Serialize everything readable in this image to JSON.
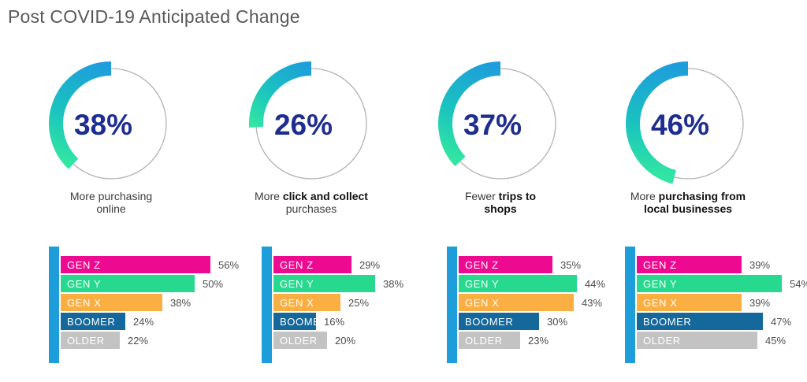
{
  "title": "Post COVID-19 Anticipated Change",
  "colors": {
    "title_text": "#58595B",
    "axis_blue": "#1E9DDB",
    "arc_gradient_start": "#1E9DDB",
    "arc_gradient_mid": "#19C2C0",
    "arc_gradient_end": "#31E5A2",
    "donut_track": "#B3B3B3",
    "donut_value_text": "#1E2D90",
    "bar_palette": [
      "#EE0A90",
      "#27D98F",
      "#FBAE42",
      "#15689B",
      "#C3C3C3"
    ],
    "bar_label_text": "#FFFFFF",
    "bar_pct_text": "#4D4D4D",
    "caption_text": "#3B3B3B"
  },
  "chart_data": [
    {
      "type": "donut+bar",
      "donut_value": 38,
      "donut_label": "38%",
      "caption_lines": [
        [
          {
            "t": "More purchasing",
            "b": false
          }
        ],
        [
          {
            "t": "online",
            "b": false
          }
        ]
      ],
      "bar_categories": [
        "GEN Z",
        "GEN Y",
        "GEN X",
        "BOOMER",
        "OLDER"
      ],
      "bar_values": [
        56,
        50,
        38,
        24,
        22
      ],
      "bar_value_labels": [
        "56%",
        "50%",
        "38%",
        "24%",
        "22%"
      ]
    },
    {
      "type": "donut+bar",
      "donut_value": 26,
      "donut_label": "26%",
      "caption_lines": [
        [
          {
            "t": "More ",
            "b": false
          },
          {
            "t": "click and collect",
            "b": true
          }
        ],
        [
          {
            "t": "purchases",
            "b": false
          }
        ]
      ],
      "bar_categories": [
        "GEN Z",
        "GEN Y",
        "GEN X",
        "BOOMER",
        "OLDER"
      ],
      "bar_values": [
        29,
        38,
        25,
        16,
        20
      ],
      "bar_value_labels": [
        "29%",
        "38%",
        "25%",
        "16%",
        "20%"
      ]
    },
    {
      "type": "donut+bar",
      "donut_value": 37,
      "donut_label": "37%",
      "caption_lines": [
        [
          {
            "t": "Fewer ",
            "b": false
          },
          {
            "t": "trips to",
            "b": true
          }
        ],
        [
          {
            "t": "shops",
            "b": true
          }
        ]
      ],
      "bar_categories": [
        "GEN Z",
        "GEN Y",
        "GEN X",
        "BOOMER",
        "OLDER"
      ],
      "bar_values": [
        35,
        44,
        43,
        30,
        23
      ],
      "bar_value_labels": [
        "35%",
        "44%",
        "43%",
        "30%",
        "23%"
      ]
    },
    {
      "type": "donut+bar",
      "donut_value": 46,
      "donut_label": "46%",
      "caption_lines": [
        [
          {
            "t": "More ",
            "b": false
          },
          {
            "t": "purchasing from",
            "b": true
          }
        ],
        [
          {
            "t": "local businesses",
            "b": true
          }
        ]
      ],
      "bar_categories": [
        "GEN Z",
        "GEN Y",
        "GEN X",
        "BOOMER",
        "OLDER"
      ],
      "bar_values": [
        39,
        54,
        39,
        47,
        45
      ],
      "bar_value_labels": [
        "39%",
        "54%",
        "39%",
        "47%",
        "45%"
      ]
    }
  ]
}
